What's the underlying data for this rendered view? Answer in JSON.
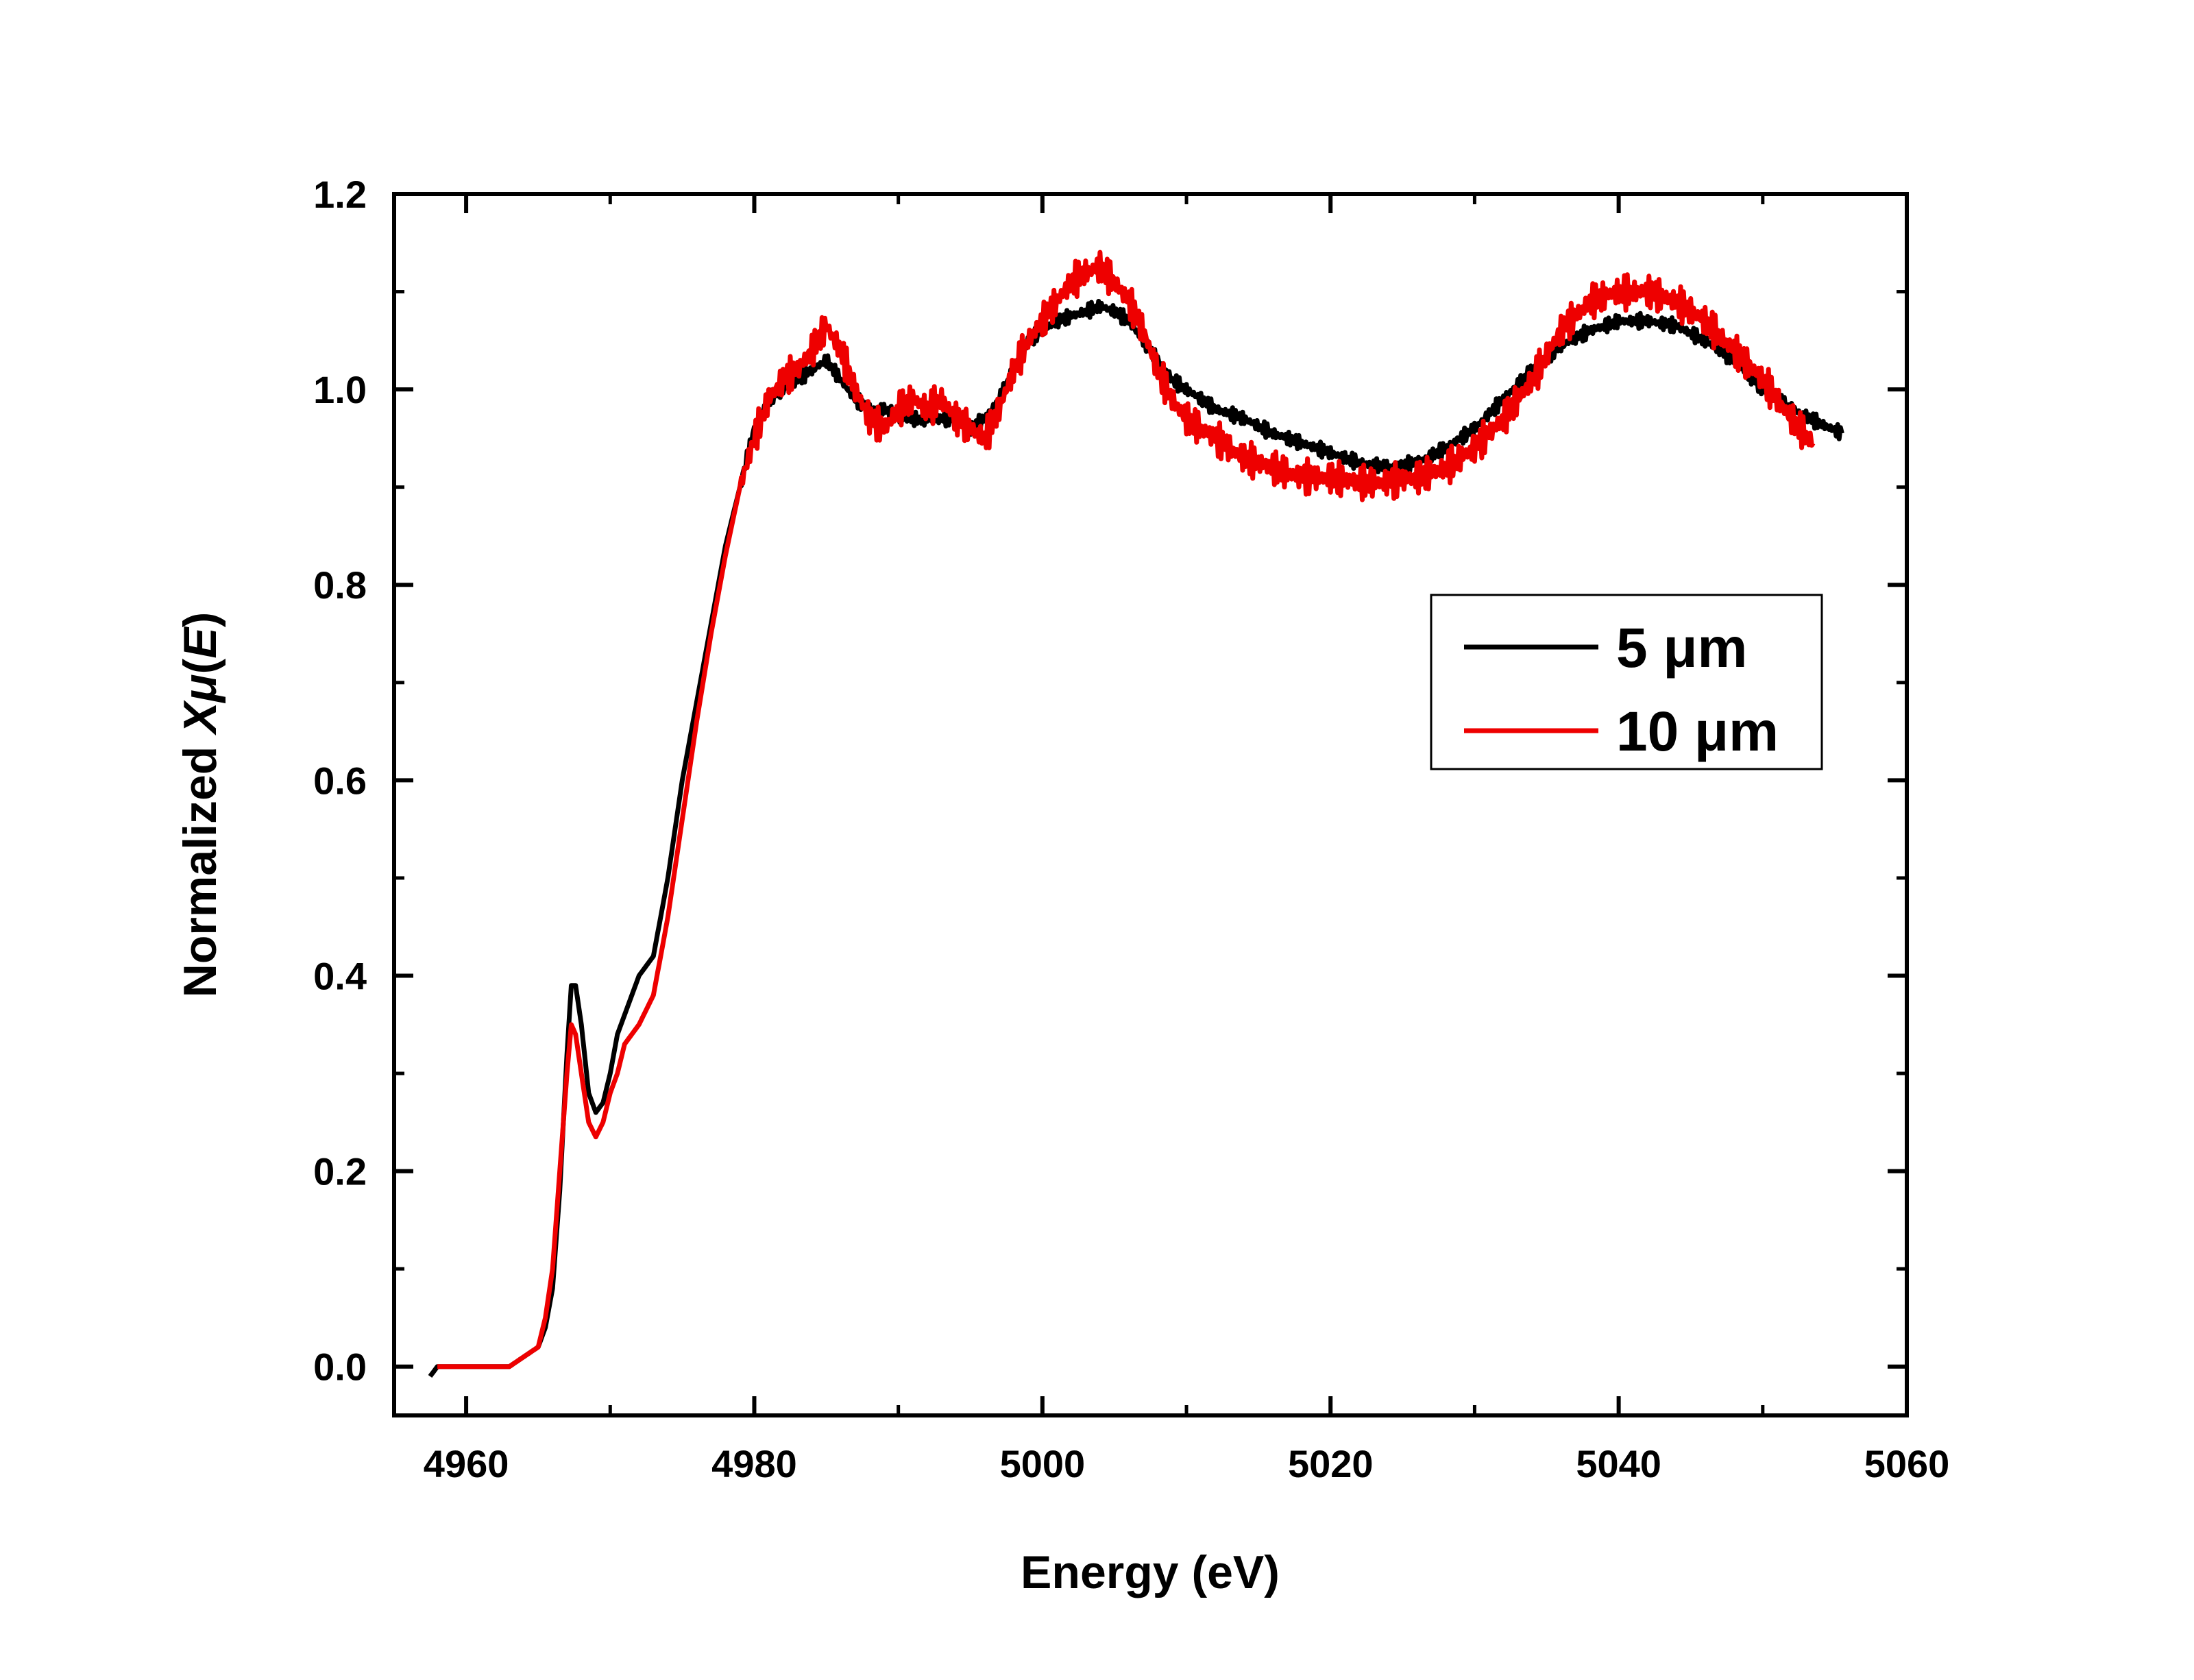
{
  "chart_data": {
    "type": "line",
    "title": "",
    "xlabel": "Energy (eV)",
    "ylabel": "Normalized Xμ(E)",
    "ylabel_parts": {
      "prefix": "Normalized ",
      "var": "Xμ",
      "open": "(",
      "arg": "E",
      "close": ")"
    },
    "xlim": [
      4955,
      5060
    ],
    "ylim": [
      -0.05,
      1.2
    ],
    "xticks": [
      4960,
      4980,
      5000,
      5020,
      5040,
      5060
    ],
    "xtick_labels": [
      "4960",
      "4980",
      "5000",
      "5020",
      "5040",
      "5060"
    ],
    "yticks": [
      0.0,
      0.2,
      0.4,
      0.6,
      0.8,
      1.0,
      1.2
    ],
    "ytick_labels": [
      "0.0",
      "0.2",
      "0.4",
      "0.6",
      "0.8",
      "1.0",
      "1.2"
    ],
    "legend_position": "center-right",
    "grid": false,
    "series": [
      {
        "name": "5 μm",
        "color": "#000000",
        "x": [
          4957.5,
          4958,
          4959,
          4960,
          4961,
          4962,
          4963,
          4964,
          4965,
          4965.5,
          4966,
          4966.5,
          4967,
          4967.3,
          4967.6,
          4968,
          4968.5,
          4969,
          4969.5,
          4970,
          4970.5,
          4971,
          4972,
          4973,
          4974,
          4975,
          4976,
          4977,
          4978,
          4979,
          4980,
          4981,
          4982,
          4983,
          4984,
          4985,
          4986,
          4987,
          4988,
          4989,
          4990,
          4991,
          4992,
          4993,
          4994,
          4995,
          4996,
          4997,
          4998,
          4999,
          5000,
          5001,
          5002,
          5003,
          5004,
          5005,
          5006,
          5007,
          5008,
          5009,
          5010,
          5012,
          5014,
          5016,
          5018,
          5020,
          5022,
          5024,
          5026,
          5028,
          5030,
          5032,
          5034,
          5036,
          5038,
          5040,
          5042,
          5044,
          5046,
          5048,
          5050,
          5052,
          5054,
          5055.5
        ],
        "y": [
          -0.01,
          0.0,
          0.0,
          0.0,
          0.0,
          0.0,
          0.0,
          0.01,
          0.02,
          0.04,
          0.08,
          0.18,
          0.32,
          0.39,
          0.39,
          0.35,
          0.28,
          0.26,
          0.27,
          0.3,
          0.34,
          0.36,
          0.4,
          0.42,
          0.5,
          0.6,
          0.68,
          0.76,
          0.84,
          0.9,
          0.96,
          0.99,
          1.0,
          1.01,
          1.02,
          1.03,
          1.01,
          0.99,
          0.98,
          0.98,
          0.97,
          0.97,
          0.97,
          0.97,
          0.97,
          0.96,
          0.97,
          0.99,
          1.02,
          1.05,
          1.06,
          1.07,
          1.075,
          1.08,
          1.085,
          1.08,
          1.07,
          1.05,
          1.03,
          1.01,
          1.0,
          0.98,
          0.97,
          0.955,
          0.945,
          0.935,
          0.925,
          0.92,
          0.925,
          0.94,
          0.96,
          0.99,
          1.02,
          1.045,
          1.06,
          1.07,
          1.07,
          1.065,
          1.05,
          1.03,
          1.0,
          0.98,
          0.965,
          0.955
        ]
      },
      {
        "name": "10 μm",
        "color": "#ee0000",
        "x": [
          4958,
          4959,
          4960,
          4961,
          4962,
          4963,
          4964,
          4965,
          4965.5,
          4966,
          4966.5,
          4967,
          4967.3,
          4967.6,
          4968,
          4968.5,
          4969,
          4969.5,
          4970,
          4970.5,
          4971,
          4972,
          4973,
          4974,
          4975,
          4976,
          4977,
          4978,
          4979,
          4980,
          4981,
          4982,
          4983,
          4984,
          4985,
          4986,
          4987,
          4988,
          4989,
          4990,
          4991,
          4992,
          4993,
          4994,
          4995,
          4996,
          4997,
          4998,
          4999,
          5000,
          5001,
          5002,
          5003,
          5004,
          5005,
          5006,
          5007,
          5008,
          5009,
          5010,
          5012,
          5014,
          5016,
          5018,
          5020,
          5022,
          5024,
          5026,
          5028,
          5030,
          5032,
          5034,
          5036,
          5038,
          5040,
          5042,
          5044,
          5046,
          5048,
          5050,
          5052,
          5053.5
        ],
        "y": [
          0.0,
          0.0,
          0.0,
          0.0,
          0.0,
          0.0,
          0.01,
          0.02,
          0.05,
          0.1,
          0.2,
          0.3,
          0.35,
          0.34,
          0.3,
          0.25,
          0.235,
          0.25,
          0.28,
          0.3,
          0.33,
          0.35,
          0.38,
          0.46,
          0.56,
          0.66,
          0.75,
          0.83,
          0.9,
          0.95,
          0.99,
          1.01,
          1.02,
          1.04,
          1.065,
          1.04,
          1.0,
          0.97,
          0.96,
          0.98,
          0.99,
          0.98,
          0.99,
          0.97,
          0.96,
          0.95,
          0.98,
          1.02,
          1.05,
          1.07,
          1.09,
          1.11,
          1.12,
          1.125,
          1.11,
          1.09,
          1.06,
          1.02,
          0.99,
          0.97,
          0.95,
          0.93,
          0.92,
          0.91,
          0.91,
          0.905,
          0.905,
          0.91,
          0.92,
          0.94,
          0.97,
          1.01,
          1.06,
          1.09,
          1.1,
          1.1,
          1.09,
          1.07,
          1.04,
          1.01,
          0.97,
          0.945
        ]
      }
    ]
  }
}
